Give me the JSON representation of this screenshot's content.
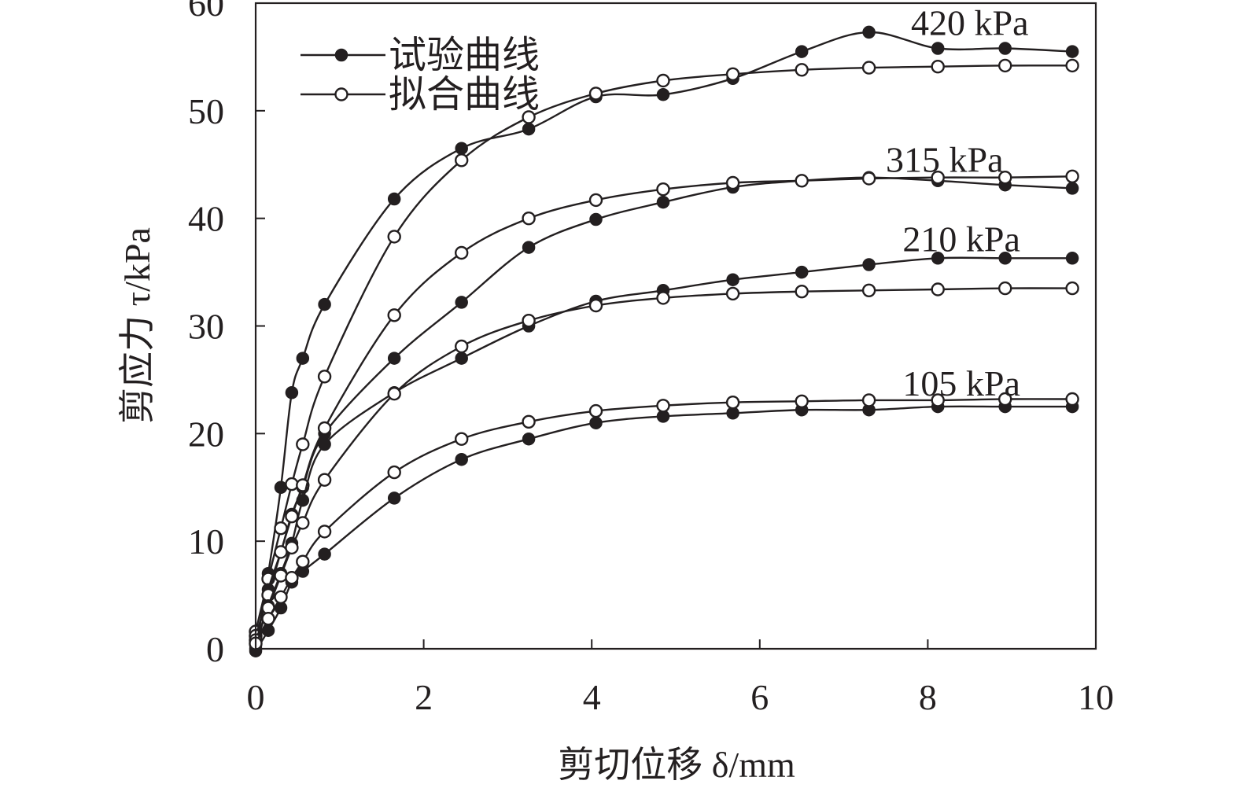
{
  "chart_data": {
    "type": "line",
    "xlabel": "剪切位移 δ/mm",
    "ylabel": "剪应力 τ/kPa",
    "xlim": [
      0,
      10
    ],
    "ylim": [
      0,
      60
    ],
    "xticks": [
      0,
      2,
      4,
      6,
      8,
      10
    ],
    "yticks": [
      0,
      10,
      20,
      30,
      40,
      50,
      60
    ],
    "grid": false,
    "legend_position": "top-left",
    "legend": [
      {
        "label": "试验曲线",
        "marker": "filled-circle"
      },
      {
        "label": "拟合曲线",
        "marker": "open-circle"
      }
    ],
    "series": [
      {
        "label": "420 kPa",
        "kind": "test",
        "x": [
          0,
          0.15,
          0.3,
          0.43,
          0.56,
          0.82,
          1.65,
          2.45,
          3.25,
          4.05,
          4.85,
          5.68,
          6.5,
          7.3,
          8.12,
          8.92,
          9.72
        ],
        "y": [
          0,
          7,
          15,
          23.8,
          27,
          32,
          41.8,
          46.5,
          48.3,
          51.3,
          51.5,
          53,
          55.5,
          57.3,
          55.8,
          55.8,
          55.5
        ]
      },
      {
        "label": "420 kPa",
        "kind": "fit",
        "x": [
          0,
          0.15,
          0.3,
          0.43,
          0.56,
          0.82,
          1.65,
          2.45,
          3.25,
          4.05,
          4.85,
          5.68,
          6.5,
          7.3,
          8.12,
          8.92,
          9.72
        ],
        "y": [
          1.6,
          6.5,
          11.2,
          15.3,
          19,
          25.3,
          38.3,
          45.4,
          49.4,
          51.6,
          52.8,
          53.4,
          53.8,
          54,
          54.1,
          54.2,
          54.2
        ]
      },
      {
        "label": "315 kPa",
        "kind": "test",
        "x": [
          0,
          0.15,
          0.3,
          0.43,
          0.56,
          0.82,
          1.65,
          2.45,
          3.25,
          4.05,
          4.85,
          5.68,
          6.5,
          7.3,
          8.12,
          8.92,
          9.72
        ],
        "y": [
          0.5,
          5.5,
          9,
          12.5,
          15,
          20,
          27,
          32.2,
          37.3,
          39.9,
          41.5,
          42.9,
          43.5,
          43.8,
          43.5,
          43.1,
          42.8
        ]
      },
      {
        "label": "315 kPa",
        "kind": "fit",
        "x": [
          0,
          0.15,
          0.3,
          0.43,
          0.56,
          0.82,
          1.65,
          2.45,
          3.25,
          4.05,
          4.85,
          5.68,
          6.5,
          7.3,
          8.12,
          8.92,
          9.72
        ],
        "y": [
          1.2,
          5,
          9,
          12.3,
          15.2,
          20.5,
          31,
          36.8,
          40,
          41.7,
          42.7,
          43.3,
          43.5,
          43.7,
          43.8,
          43.8,
          43.9
        ]
      },
      {
        "label": "210 kPa",
        "kind": "test",
        "x": [
          0,
          0.15,
          0.3,
          0.43,
          0.56,
          0.82,
          1.65,
          2.45,
          3.25,
          4.05,
          4.85,
          5.68,
          6.5,
          7.3,
          8.12,
          8.92,
          9.72
        ],
        "y": [
          0.3,
          4,
          7,
          9.8,
          13.8,
          19,
          23.8,
          27,
          30,
          32.3,
          33.3,
          34.3,
          35,
          35.7,
          36.3,
          36.3,
          36.3
        ]
      },
      {
        "label": "210 kPa",
        "kind": "fit",
        "x": [
          0,
          0.15,
          0.3,
          0.43,
          0.56,
          0.82,
          1.65,
          2.45,
          3.25,
          4.05,
          4.85,
          5.68,
          6.5,
          7.3,
          8.12,
          8.92,
          9.72
        ],
        "y": [
          0.8,
          3.8,
          6.8,
          9.4,
          11.7,
          15.7,
          23.7,
          28.1,
          30.5,
          31.9,
          32.6,
          33,
          33.2,
          33.3,
          33.4,
          33.5,
          33.5
        ]
      },
      {
        "label": "105 kPa",
        "kind": "test",
        "x": [
          0,
          0.15,
          0.3,
          0.43,
          0.56,
          0.82,
          1.65,
          2.45,
          3.25,
          4.05,
          4.85,
          5.68,
          6.5,
          7.3,
          8.12,
          8.92,
          9.72
        ],
        "y": [
          -0.2,
          1.7,
          3.8,
          6.2,
          7.2,
          8.8,
          14,
          17.6,
          19.5,
          21,
          21.6,
          21.9,
          22.2,
          22.2,
          22.5,
          22.5,
          22.5
        ]
      },
      {
        "label": "105 kPa",
        "kind": "fit",
        "x": [
          0,
          0.15,
          0.3,
          0.43,
          0.56,
          0.82,
          1.65,
          2.45,
          3.25,
          4.05,
          4.85,
          5.68,
          6.5,
          7.3,
          8.12,
          8.92,
          9.72
        ],
        "y": [
          0.5,
          2.8,
          4.8,
          6.6,
          8.1,
          10.9,
          16.4,
          19.5,
          21.1,
          22.1,
          22.6,
          22.9,
          23,
          23.1,
          23.1,
          23.2,
          23.2
        ]
      }
    ],
    "series_labels": [
      {
        "text": "420 kPa",
        "x": 8.5,
        "y": 58.2
      },
      {
        "text": "315 kPa",
        "x": 8.2,
        "y": 45.5
      },
      {
        "text": "210 kPa",
        "x": 8.4,
        "y": 38.1
      },
      {
        "text": "105 kPa",
        "x": 8.4,
        "y": 24.7
      }
    ]
  }
}
